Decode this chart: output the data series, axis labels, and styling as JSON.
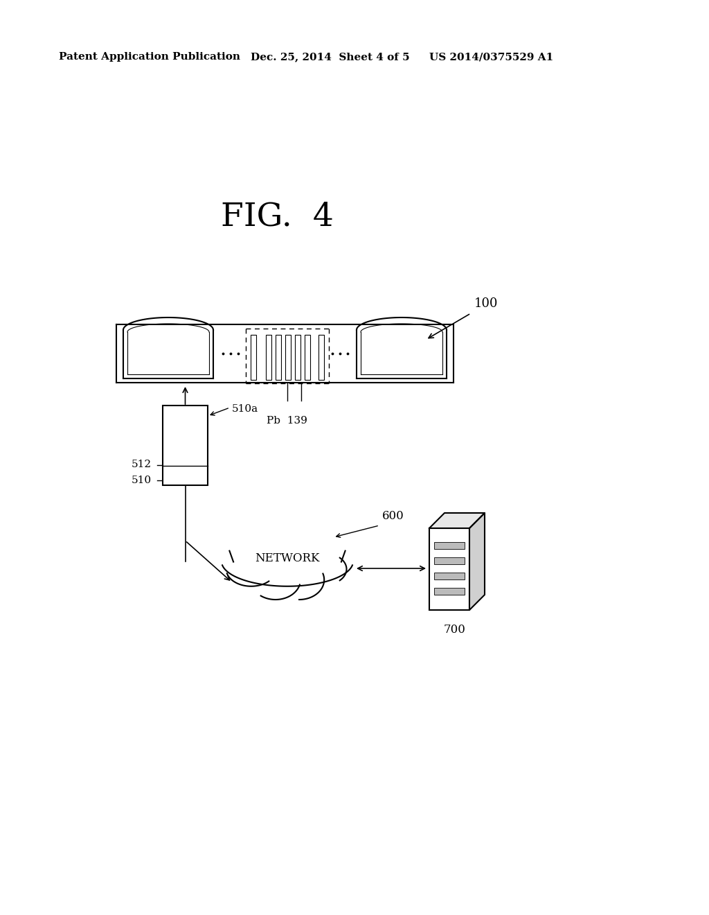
{
  "bg_color": "#ffffff",
  "header_left": "Patent Application Publication",
  "header_mid": "Dec. 25, 2014  Sheet 4 of 5",
  "header_right": "US 2014/0375529 A1",
  "fig_label": "FIG.  4",
  "label_100": "100",
  "label_510a": "510a",
  "label_512": "512",
  "label_510": "510",
  "label_Pb": "Pb  139",
  "label_600": "600",
  "label_700": "700",
  "label_network": "NETWORK"
}
